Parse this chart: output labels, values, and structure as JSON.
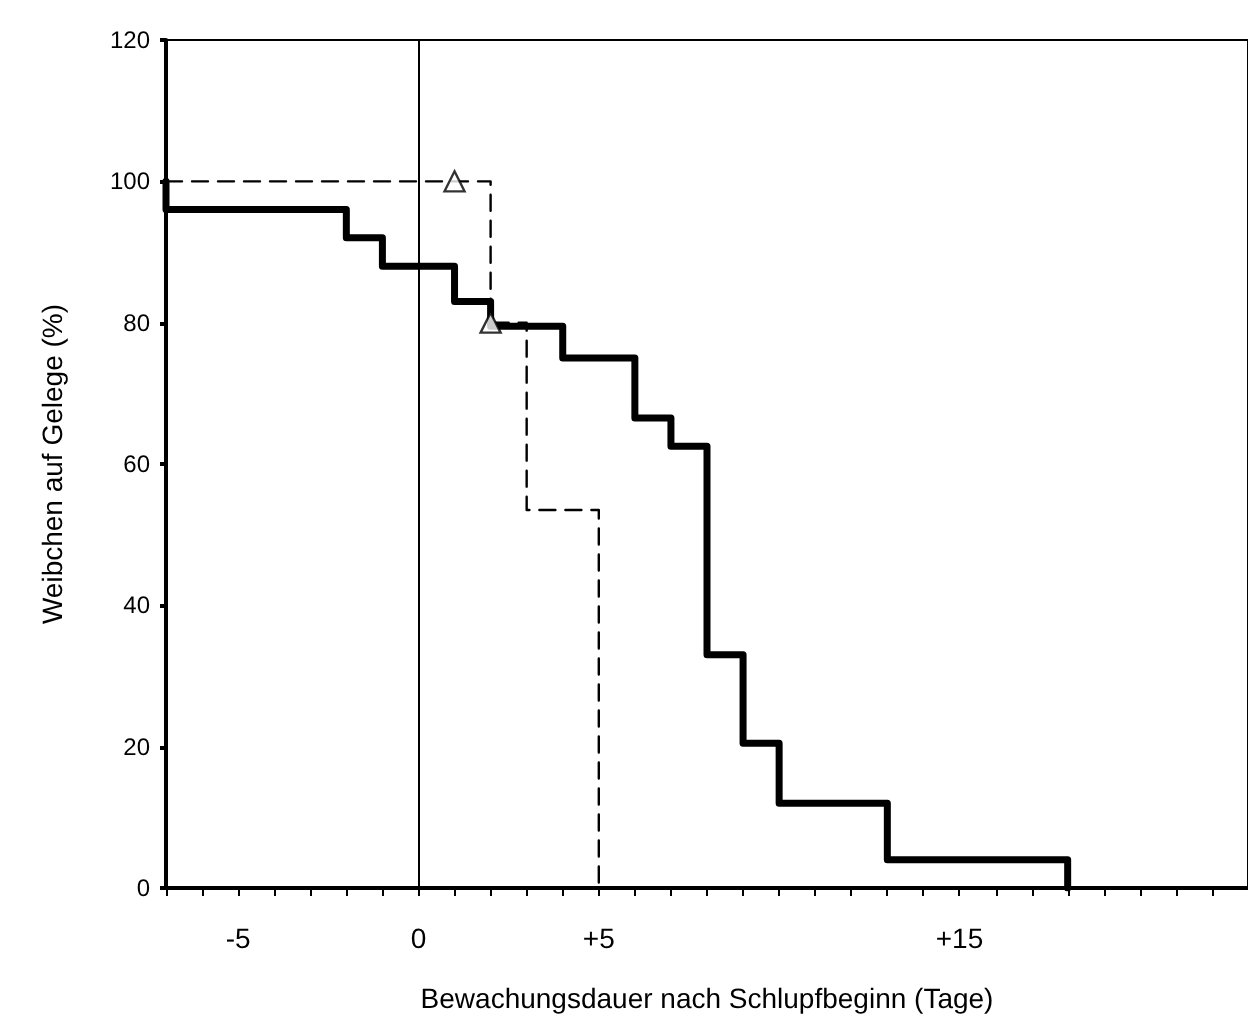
{
  "chart_data": {
    "type": "step",
    "xlabel": "Bewachungsdauer nach Schlupfbeginn (Tage)",
    "ylabel": "Weibchen auf Gelege (%)",
    "xlim": [
      -7,
      23
    ],
    "ylim": [
      0,
      120
    ],
    "yticks": [
      0,
      20,
      40,
      60,
      80,
      100,
      120
    ],
    "xticks": [
      {
        "value": -7,
        "label": null
      },
      {
        "value": -6,
        "label": null
      },
      -5,
      {
        "value": -4,
        "label": null
      },
      {
        "value": -3,
        "label": null
      },
      {
        "value": -2,
        "label": null
      },
      {
        "value": -1,
        "label": null
      },
      0,
      {
        "value": 1,
        "label": null
      },
      {
        "value": 2,
        "label": null
      },
      {
        "value": 3,
        "label": null
      },
      {
        "value": 4,
        "label": null
      },
      {
        "value": 5,
        "label": "+5"
      },
      {
        "value": 6,
        "label": null
      },
      {
        "value": 7,
        "label": null
      },
      {
        "value": 8,
        "label": null
      },
      {
        "value": 9,
        "label": null
      },
      {
        "value": 10,
        "label": null
      },
      {
        "value": 11,
        "label": null
      },
      {
        "value": 12,
        "label": null
      },
      {
        "value": 13,
        "label": null
      },
      {
        "value": 14,
        "label": null
      },
      {
        "value": 15,
        "label": "+15"
      },
      {
        "value": 16,
        "label": null
      },
      {
        "value": 17,
        "label": null
      },
      {
        "value": 18,
        "label": null
      },
      {
        "value": 19,
        "label": null
      },
      {
        "value": 20,
        "label": null
      },
      {
        "value": 21,
        "label": null
      },
      {
        "value": 22,
        "label": null
      },
      {
        "value": 23,
        "label": null
      }
    ],
    "grid": false,
    "ref_lines": [
      {
        "axis": "x",
        "value": 0,
        "color": "#000000",
        "line_style": "solid"
      }
    ],
    "series": [
      {
        "color": "#000000",
        "line_style": "solid",
        "marker": "none",
        "x": [
          -7,
          -7,
          -2,
          -1,
          1,
          2,
          4,
          6,
          7,
          8,
          9,
          10,
          13,
          18
        ],
        "values": [
          100,
          96,
          92,
          88,
          83,
          79.5,
          75,
          66.5,
          62.5,
          33,
          20.5,
          12,
          4,
          0
        ]
      },
      {
        "color": "#000000",
        "line_style": "dashed",
        "marker": "none",
        "x": [
          -7,
          2,
          3,
          5
        ],
        "values": [
          100,
          80,
          53.5,
          0
        ]
      },
      {
        "type": "scatter",
        "color": "#000000",
        "marker": "triangle",
        "x": [
          1,
          2
        ],
        "values": [
          100,
          80
        ]
      }
    ]
  }
}
